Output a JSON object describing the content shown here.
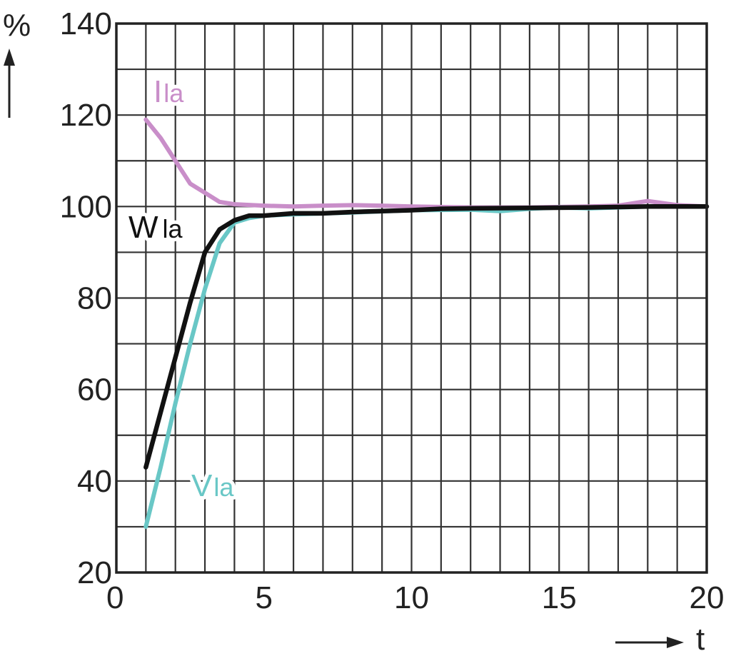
{
  "chart_data": {
    "type": "line",
    "title": "",
    "xlabel": "t",
    "ylabel": "%",
    "xlim": [
      0,
      20
    ],
    "ylim": [
      20,
      140
    ],
    "x_ticks": [
      0,
      5,
      10,
      15,
      20
    ],
    "y_ticks": [
      20,
      40,
      60,
      80,
      100,
      120,
      140
    ],
    "x_tick_labels": [
      "0",
      "5",
      "10",
      "15",
      "20"
    ],
    "y_tick_labels": [
      "20",
      "40",
      "60",
      "80",
      "100",
      "120",
      "140"
    ],
    "x_minor_step": 1,
    "y_minor_step": 10,
    "grid": true,
    "legend": "inline labels",
    "series": [
      {
        "name": "Ila",
        "label_main": "I",
        "label_sub": "la",
        "color": "#c98ec9",
        "x": [
          1,
          1.5,
          2,
          2.5,
          3,
          3.5,
          4,
          5,
          6,
          7,
          8,
          9,
          10,
          12,
          14,
          16,
          17,
          18,
          19,
          20
        ],
        "y": [
          119,
          115,
          110,
          105,
          103,
          101,
          100.5,
          100.2,
          100,
          100.2,
          100.3,
          100.2,
          100,
          99.8,
          99.8,
          100,
          100.2,
          101.2,
          100.3,
          100
        ]
      },
      {
        "name": "Wla",
        "label_main": "W",
        "label_sub": "la",
        "color": "#111111",
        "x": [
          1,
          1.5,
          2,
          2.5,
          3,
          3.5,
          4,
          4.5,
          5,
          6,
          7,
          8,
          9,
          10,
          11,
          12,
          14,
          16,
          18,
          20
        ],
        "y": [
          43,
          55,
          67,
          79,
          90,
          95,
          97,
          98,
          98,
          98.5,
          98.5,
          98.8,
          99,
          99.2,
          99.5,
          99.6,
          99.7,
          99.8,
          100,
          100
        ]
      },
      {
        "name": "Vla",
        "label_main": "V",
        "label_sub": "la",
        "color": "#69c7c6",
        "x": [
          1,
          1.5,
          2,
          2.5,
          3,
          3.5,
          4,
          4.5,
          5,
          6,
          8,
          10,
          12,
          13,
          14,
          15,
          16,
          18,
          20
        ],
        "y": [
          30,
          43,
          57,
          70,
          82,
          92,
          96.5,
          97.5,
          98,
          98.3,
          98.7,
          99.2,
          99.3,
          99,
          99.5,
          99.8,
          99.6,
          100,
          100
        ]
      }
    ]
  }
}
